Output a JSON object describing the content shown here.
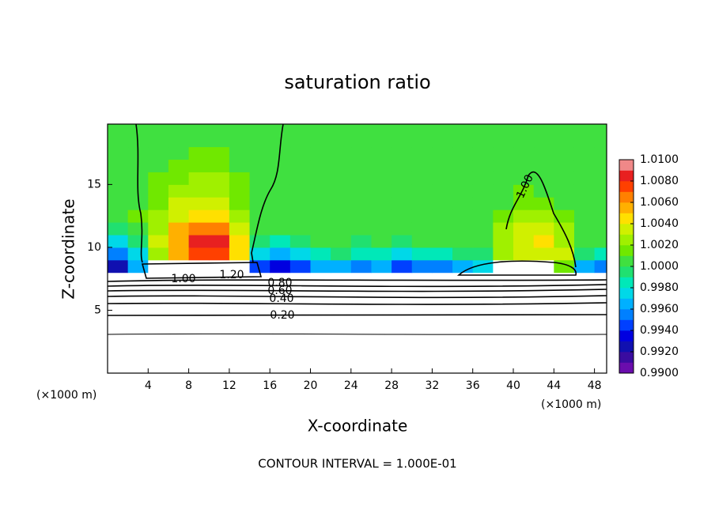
{
  "chart_data": {
    "type": "heatmap",
    "title": "saturation ratio",
    "x_label": "X-coordinate",
    "y_label": "Z-coordinate",
    "x_unit_left": "(×1000 m)",
    "x_unit_right": "(×1000 m)",
    "footer": "CONTOUR INTERVAL = 1.000E-01",
    "xlim": [
      0,
      49.2
    ],
    "ylim": [
      0,
      19.8
    ],
    "xticks": [
      4,
      8,
      12,
      16,
      20,
      24,
      28,
      32,
      36,
      40,
      44,
      48
    ],
    "yticks": [
      5,
      10,
      15
    ],
    "x_bins": [
      0,
      2,
      4,
      6,
      8,
      10,
      12,
      14,
      16,
      18,
      20,
      22,
      24,
      26,
      28,
      30,
      32,
      34,
      36,
      38,
      40,
      42,
      44,
      46,
      48,
      50
    ],
    "z_bins": [
      0,
      7,
      8,
      9,
      10,
      11,
      12,
      13,
      14,
      15,
      16,
      17,
      18,
      20
    ],
    "z": [
      [
        0.6,
        0.6,
        0.6,
        0.6,
        0.6,
        0.6,
        0.6,
        0.6,
        0.6,
        0.6,
        0.6,
        0.6,
        0.6,
        0.6,
        0.6,
        0.6,
        0.6,
        0.6,
        0.6,
        0.6,
        0.6,
        0.6,
        0.6,
        0.6,
        0.6
      ],
      [
        0.95,
        0.95,
        1.05,
        1.05,
        1.05,
        1.05,
        1.05,
        0.95,
        0.95,
        0.95,
        0.95,
        0.95,
        0.95,
        0.95,
        0.95,
        0.95,
        0.95,
        0.95,
        0.95,
        0.95,
        1.05,
        1.05,
        1.05,
        0.95,
        0.95
      ],
      [
        0.9925,
        0.996,
        1.05,
        1.05,
        1.05,
        1.05,
        1.05,
        0.994,
        0.9935,
        0.9945,
        0.996,
        0.9965,
        0.995,
        0.996,
        0.9945,
        0.9955,
        0.995,
        0.996,
        0.997,
        1.05,
        1.05,
        1.05,
        1.0015,
        0.9965,
        0.9955
      ],
      [
        0.995,
        0.9975,
        1.0025,
        1.005,
        1.0075,
        1.007,
        1.004,
        0.997,
        0.9965,
        0.9975,
        0.9985,
        0.999,
        0.998,
        0.9988,
        0.9978,
        0.9985,
        0.9982,
        0.999,
        0.9995,
        1.002,
        1.003,
        1.0035,
        1.003,
        0.9995,
        0.9985
      ],
      [
        0.9975,
        0.9995,
        1.003,
        1.0055,
        1.0085,
        1.008,
        1.004,
        0.999,
        0.9988,
        0.9995,
        1.0003,
        1.0003,
        0.9998,
        1.0003,
        0.9998,
        1.0003,
        1.0002,
        1.0004,
        1.0005,
        1.002,
        1.0035,
        1.004,
        1.0025,
        1.0005,
        1.0
      ],
      [
        0.9995,
        1.0008,
        1.0028,
        1.005,
        1.0065,
        1.0065,
        1.0035,
        1.0003,
        1.0005,
        1.0005,
        1.0005,
        1.0005,
        1.0005,
        1.0005,
        1.0005,
        1.0005,
        1.0005,
        1.0005,
        1.0005,
        1.002,
        1.003,
        1.0035,
        1.002,
        1.0006,
        1.0005
      ],
      [
        1.0003,
        1.001,
        1.0022,
        1.0038,
        1.0045,
        1.0042,
        1.0025,
        1.0005,
        1.0005,
        1.0005,
        1.0005,
        1.0005,
        1.0005,
        1.0005,
        1.0005,
        1.0005,
        1.0005,
        1.0005,
        1.0005,
        1.0015,
        1.0025,
        1.0025,
        1.0012,
        1.0005,
        1.0005
      ],
      [
        1.0005,
        1.0005,
        1.0018,
        1.003,
        1.0035,
        1.0032,
        1.0018,
        1.0005,
        1.0005,
        1.0005,
        1.0005,
        1.0005,
        1.0005,
        1.0005,
        1.0005,
        1.0005,
        1.0005,
        1.0005,
        1.0005,
        1.0005,
        1.0018,
        1.0015,
        1.0005,
        1.0005,
        1.0005
      ],
      [
        1.0005,
        1.0005,
        1.0014,
        1.0024,
        1.0028,
        1.0026,
        1.0013,
        1.0005,
        1.0005,
        1.0005,
        1.0005,
        1.0005,
        1.0005,
        1.0005,
        1.0005,
        1.0005,
        1.0005,
        1.0005,
        1.0005,
        1.0005,
        1.0012,
        1.0005,
        1.0005,
        1.0005,
        1.0005
      ],
      [
        1.0005,
        1.0005,
        1.001,
        1.0018,
        1.0022,
        1.002,
        1.001,
        1.0005,
        1.0005,
        1.0005,
        1.0005,
        1.0005,
        1.0005,
        1.0005,
        1.0005,
        1.0005,
        1.0005,
        1.0005,
        1.0005,
        1.0005,
        1.0005,
        1.0005,
        1.0005,
        1.0005,
        1.0005
      ],
      [
        1.0005,
        1.0005,
        1.0005,
        1.0014,
        1.0018,
        1.0015,
        1.0005,
        1.0005,
        1.0005,
        1.0005,
        1.0005,
        1.0005,
        1.0005,
        1.0005,
        1.0005,
        1.0005,
        1.0005,
        1.0005,
        1.0005,
        1.0005,
        1.0005,
        1.0005,
        1.0005,
        1.0005,
        1.0005
      ],
      [
        1.0005,
        1.0005,
        1.0005,
        1.0005,
        1.0012,
        1.001,
        1.0005,
        1.0005,
        1.0005,
        1.0005,
        1.0005,
        1.0005,
        1.0005,
        1.0005,
        1.0005,
        1.0005,
        1.0005,
        1.0005,
        1.0005,
        1.0005,
        1.0005,
        1.0005,
        1.0005,
        1.0005,
        1.0005
      ],
      [
        1.0005,
        1.0005,
        1.0005,
        1.0005,
        1.0005,
        1.0005,
        1.0005,
        1.0005,
        1.0005,
        1.0005,
        1.0005,
        1.0005,
        1.0005,
        1.0005,
        1.0005,
        1.0005,
        1.0005,
        1.0005,
        1.0005,
        1.0005,
        1.0005,
        1.0005,
        1.0005,
        1.0005,
        1.0005
      ]
    ],
    "colorbar_lim": [
      0.99,
      1.01
    ],
    "colorbar_colors": [
      "#6a0dad",
      "#3a0ca0",
      "#1010b0",
      "#0000e0",
      "#0040ff",
      "#0080ff",
      "#00b0ff",
      "#00d8e8",
      "#00e8b8",
      "#20e070",
      "#40e040",
      "#70e800",
      "#a0f000",
      "#d0f000",
      "#ffe000",
      "#ffb000",
      "#ff8000",
      "#ff4000",
      "#e82020",
      "#f08888"
    ],
    "colorbar_ticks": [
      {
        "value": 0.99,
        "label": "0.9900"
      },
      {
        "value": 0.992,
        "label": "0.9920"
      },
      {
        "value": 0.994,
        "label": "0.9940"
      },
      {
        "value": 0.996,
        "label": "0.9960"
      },
      {
        "value": 0.998,
        "label": "0.9980"
      },
      {
        "value": 1.0,
        "label": "1.0000"
      },
      {
        "value": 1.002,
        "label": "1.0020"
      },
      {
        "value": 1.004,
        "label": "1.0040"
      },
      {
        "value": 1.006,
        "label": "1.0060"
      },
      {
        "value": 1.008,
        "label": "1.0080"
      },
      {
        "value": 1.01,
        "label": "1.0100"
      }
    ],
    "contour_labels": [
      "1.00",
      "1.20",
      "0.80",
      "0.60",
      "0.40",
      "0.20",
      "1.00"
    ]
  }
}
